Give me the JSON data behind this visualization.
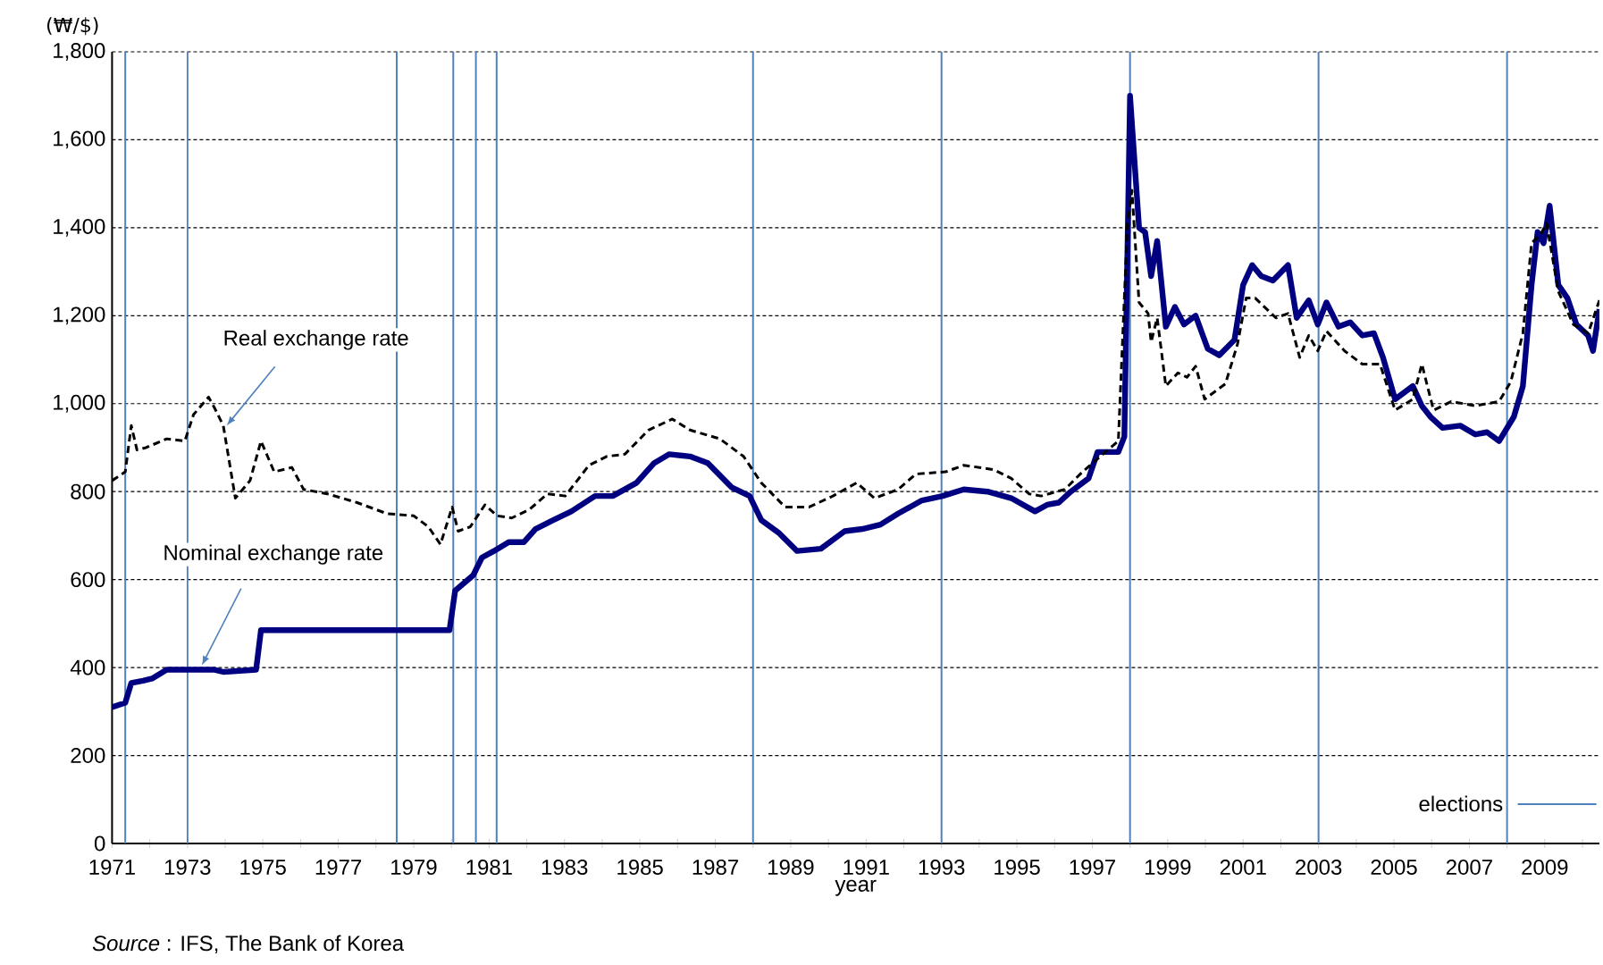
{
  "chart_data": {
    "type": "line",
    "xlabel": "year",
    "ylabel": "(₩/$)",
    "xlim": [
      1971,
      2010.45
    ],
    "ylim": [
      0,
      1800
    ],
    "xticks": [
      1971,
      {
        "value": 1972,
        "label": null
      },
      1973,
      {
        "value": 1974,
        "label": null
      },
      1975,
      {
        "value": 1976,
        "label": null
      },
      1977,
      {
        "value": 1978,
        "label": null
      },
      1979,
      {
        "value": 1980,
        "label": null
      },
      1981,
      {
        "value": 1982,
        "label": null
      },
      1983,
      {
        "value": 1984,
        "label": null
      },
      1985,
      {
        "value": 1986,
        "label": null
      },
      1987,
      {
        "value": 1988,
        "label": null
      },
      1989,
      {
        "value": 1990,
        "label": null
      },
      1991,
      {
        "value": 1992,
        "label": null
      },
      1993,
      {
        "value": 1994,
        "label": null
      },
      1995,
      {
        "value": 1996,
        "label": null
      },
      1997,
      {
        "value": 1998,
        "label": null
      },
      1999,
      {
        "value": 2000,
        "label": null
      },
      2001,
      {
        "value": 2002,
        "label": null
      },
      2003,
      {
        "value": 2004,
        "label": null
      },
      2005,
      {
        "value": 2006,
        "label": null
      },
      2007,
      {
        "value": 2008,
        "label": null
      },
      2009,
      {
        "value": 2010,
        "label": null
      }
    ],
    "yticks": [
      0,
      200,
      400,
      600,
      800,
      {
        "value": 1000,
        "label": "1,000"
      },
      {
        "value": 1200,
        "label": "1,200"
      },
      {
        "value": 1400,
        "label": "1,400"
      },
      {
        "value": 1600,
        "label": "1,600"
      },
      {
        "value": 1800,
        "label": "1,800"
      }
    ],
    "grid": "y",
    "marker": "none",
    "series": [
      {
        "color": "#000080",
        "line_style": "solid",
        "x": [
          1971.0,
          1971.35,
          1971.51,
          1971.82,
          1972.06,
          1972.45,
          1973.08,
          1973.72,
          1973.95,
          1974.82,
          1974.95,
          1979.95,
          1980.1,
          1980.58,
          1980.81,
          1981.13,
          1981.52,
          1981.92,
          1982.23,
          1982.7,
          1983.18,
          1983.81,
          1984.28,
          1984.91,
          1985.38,
          1985.78,
          1986.33,
          1986.8,
          1987.43,
          1987.91,
          1988.22,
          1988.7,
          1989.17,
          1989.8,
          1990.43,
          1990.9,
          1991.38,
          1991.85,
          1992.48,
          1993.03,
          1993.59,
          1994.22,
          1994.85,
          1995.48,
          1995.8,
          1996.11,
          1996.43,
          1996.9,
          1997.14,
          1997.69,
          1997.85,
          1998.0,
          1998.24,
          1998.4,
          1998.56,
          1998.72,
          1998.95,
          1999.19,
          1999.43,
          1999.74,
          2000.06,
          2000.37,
          2000.77,
          2001.0,
          2001.24,
          2001.48,
          2001.79,
          2002.19,
          2002.42,
          2002.74,
          2002.98,
          2003.21,
          2003.53,
          2003.84,
          2004.16,
          2004.47,
          2004.71,
          2005.03,
          2005.5,
          2005.74,
          2005.97,
          2006.29,
          2006.76,
          2007.16,
          2007.47,
          2007.79,
          2008.18,
          2008.42,
          2008.65,
          2008.81,
          2008.97,
          2009.13,
          2009.36,
          2009.6,
          2009.84,
          2010.15,
          2010.28,
          2010.45
        ],
        "values": [
          310,
          320,
          365,
          370,
          375,
          395,
          395,
          395,
          390,
          395,
          485,
          485,
          575,
          610,
          650,
          665,
          685,
          685,
          715,
          735,
          755,
          790,
          790,
          820,
          865,
          885,
          880,
          865,
          810,
          790,
          735,
          705,
          665,
          670,
          710,
          715,
          725,
          750,
          780,
          790,
          805,
          800,
          785,
          755,
          770,
          775,
          800,
          830,
          890,
          890,
          925,
          1700,
          1400,
          1390,
          1290,
          1370,
          1175,
          1220,
          1180,
          1200,
          1125,
          1110,
          1145,
          1270,
          1315,
          1290,
          1280,
          1315,
          1195,
          1235,
          1180,
          1230,
          1175,
          1185,
          1155,
          1160,
          1105,
          1010,
          1040,
          995,
          970,
          945,
          950,
          930,
          935,
          915,
          970,
          1040,
          1270,
          1390,
          1365,
          1450,
          1270,
          1240,
          1180,
          1155,
          1120,
          1215
        ]
      },
      {
        "color": "#000000",
        "line_style": "dashed",
        "x": [
          1971.0,
          1971.35,
          1971.51,
          1971.66,
          1971.9,
          1972.45,
          1972.93,
          1973.16,
          1973.56,
          1973.72,
          1973.95,
          1974.27,
          1974.66,
          1974.95,
          1975.3,
          1975.77,
          1976.08,
          1976.71,
          1977.5,
          1978.29,
          1979.0,
          1979.39,
          1979.71,
          1980.02,
          1980.18,
          1980.5,
          1980.89,
          1981.21,
          1981.6,
          1982.08,
          1982.55,
          1983.02,
          1983.65,
          1984.12,
          1984.6,
          1985.23,
          1985.86,
          1986.33,
          1987.12,
          1987.75,
          1988.22,
          1988.85,
          1989.49,
          1990.12,
          1990.75,
          1991.22,
          1991.85,
          1992.32,
          1993.11,
          1993.59,
          1994.38,
          1994.85,
          1995.32,
          1995.64,
          1996.27,
          1996.74,
          1997.21,
          1997.69,
          1997.93,
          1998.05,
          1998.24,
          1998.48,
          1998.56,
          1998.72,
          1998.95,
          1999.27,
          1999.51,
          1999.74,
          1999.98,
          2000.53,
          2000.85,
          2001.08,
          2001.32,
          2001.87,
          2002.19,
          2002.5,
          2002.74,
          2002.98,
          2003.21,
          2003.69,
          2004.16,
          2004.63,
          2005.03,
          2005.5,
          2005.74,
          2006.05,
          2006.52,
          2007.16,
          2007.79,
          2008.1,
          2008.42,
          2008.65,
          2008.89,
          2009.05,
          2009.36,
          2009.76,
          2010.15,
          2010.45
        ],
        "values": [
          825,
          845,
          950,
          895,
          900,
          920,
          915,
          975,
          1015,
          990,
          950,
          785,
          825,
          915,
          845,
          855,
          805,
          795,
          775,
          750,
          745,
          720,
          680,
          765,
          710,
          720,
          770,
          745,
          740,
          760,
          795,
          790,
          860,
          880,
          885,
          940,
          965,
          940,
          920,
          880,
          820,
          765,
          765,
          790,
          820,
          785,
          805,
          840,
          845,
          860,
          850,
          830,
          795,
          790,
          805,
          845,
          880,
          915,
          1405,
          1485,
          1230,
          1205,
          1140,
          1195,
          1040,
          1070,
          1060,
          1085,
          1010,
          1045,
          1135,
          1240,
          1240,
          1195,
          1205,
          1105,
          1155,
          1120,
          1165,
          1120,
          1090,
          1090,
          985,
          1010,
          1090,
          985,
          1005,
          995,
          1005,
          1050,
          1160,
          1365,
          1385,
          1410,
          1255,
          1180,
          1160,
          1235
        ]
      }
    ],
    "ref_lines": [
      {
        "axis": "x",
        "value": 1971.35,
        "color": "#4f81bd"
      },
      {
        "axis": "x",
        "value": 1973.0,
        "color": "#4f81bd"
      },
      {
        "axis": "x",
        "value": 1978.55,
        "color": "#4f81bd"
      },
      {
        "axis": "x",
        "value": 1980.05,
        "color": "#4f81bd"
      },
      {
        "axis": "x",
        "value": 1980.65,
        "color": "#4f81bd"
      },
      {
        "axis": "x",
        "value": 1981.2,
        "color": "#4f81bd"
      },
      {
        "axis": "x",
        "value": 1988.0,
        "color": "#4f81bd"
      },
      {
        "axis": "x",
        "value": 1993.0,
        "color": "#4f81bd"
      },
      {
        "axis": "x",
        "value": 1998.0,
        "color": "#4f81bd"
      },
      {
        "axis": "x",
        "value": 2003.0,
        "color": "#4f81bd"
      },
      {
        "axis": "x",
        "value": 2008.0,
        "label": "elections",
        "color": "#4f81bd"
      }
    ],
    "annotations": [
      {
        "text": "Real exchange rate",
        "x": 1974.04,
        "y": 950
      },
      {
        "text": "Nominal exchange rate",
        "x": 1973.38,
        "y": 405
      },
      "*Source* : IFS, The Bank of Korea"
    ]
  }
}
